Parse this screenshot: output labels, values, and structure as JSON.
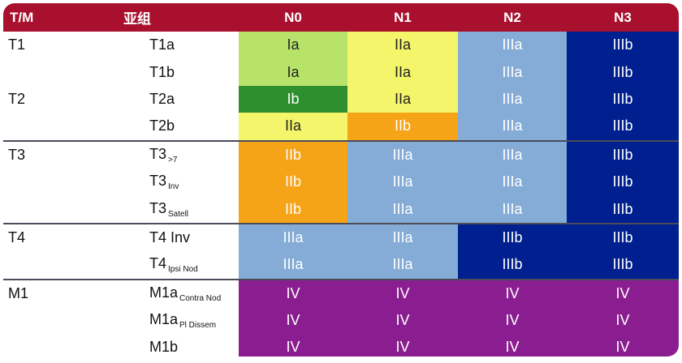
{
  "header": {
    "tm": "T/M",
    "subgroup": "亚组",
    "n0": "N0",
    "n1": "N1",
    "n2": "N2",
    "n3": "N3"
  },
  "colors": {
    "header": "#a8102e",
    "Ia": "#b8e36a",
    "IIa": "#f4f56a",
    "Ib": "#2f8f2f",
    "IIb": "#f5a317",
    "IIIa": "#84acd6",
    "IIIb": "#00208f",
    "IV": "#8a1e90"
  },
  "rows": [
    {
      "tm": "T1",
      "sub": "T1a",
      "sub_small": "",
      "cells": [
        "Ia",
        "IIa",
        "IIIa",
        "IIIb"
      ]
    },
    {
      "tm": "",
      "sub": "T1b",
      "sub_small": "",
      "cells": [
        "Ia",
        "IIa",
        "IIIa",
        "IIIb"
      ]
    },
    {
      "tm": "T2",
      "sub": "T2a",
      "sub_small": "",
      "cells": [
        "Ib",
        "IIa",
        "IIIa",
        "IIIb"
      ]
    },
    {
      "tm": "",
      "sub": "T2b",
      "sub_small": "",
      "cells": [
        "IIa",
        "IIb",
        "IIIa",
        "IIIb"
      ]
    },
    {
      "tm": "T3",
      "sub": "T3",
      "sub_small": ">7",
      "cells": [
        "IIb",
        "IIIa",
        "IIIa",
        "IIIb"
      ]
    },
    {
      "tm": "",
      "sub": "T3",
      "sub_small": "Inv",
      "cells": [
        "IIb",
        "IIIa",
        "IIIa",
        "IIIb"
      ]
    },
    {
      "tm": "",
      "sub": "T3",
      "sub_small": "Satell",
      "cells": [
        "IIb",
        "IIIa",
        "IIIa",
        "IIIb"
      ]
    },
    {
      "tm": "T4",
      "sub": "T4 Inv",
      "sub_small": "",
      "cells": [
        "IIIa",
        "IIIa",
        "IIIb",
        "IIIb"
      ]
    },
    {
      "tm": "",
      "sub": "T4",
      "sub_small": "Ipsi Nod",
      "cells": [
        "IIIa",
        "IIIa",
        "IIIb",
        "IIIb"
      ]
    },
    {
      "tm": "M1",
      "sub": "M1a",
      "sub_small": "Contra Nod",
      "cells": [
        "IV",
        "IV",
        "IV",
        "IV"
      ]
    },
    {
      "tm": "",
      "sub": "M1a",
      "sub_small": "Pl Dissem",
      "cells": [
        "IV",
        "IV",
        "IV",
        "IV"
      ]
    },
    {
      "tm": "",
      "sub": "M1b",
      "sub_small": "",
      "cells": [
        "IV",
        "IV",
        "IV",
        "IV"
      ]
    }
  ]
}
